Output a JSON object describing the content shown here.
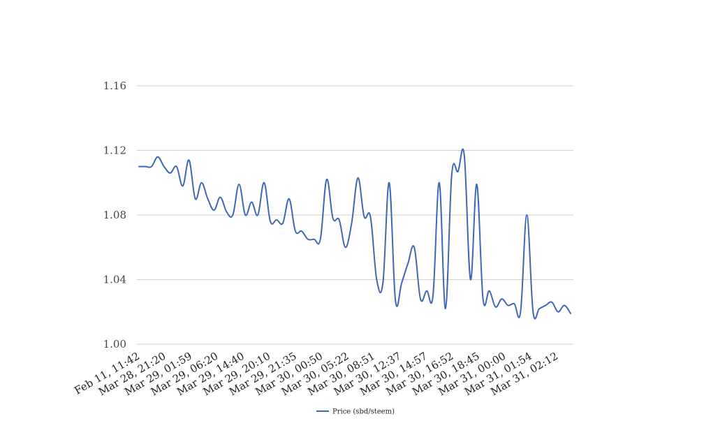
{
  "chart_data": {
    "type": "line",
    "title": "",
    "xlabel": "",
    "ylabel": "",
    "ylim": [
      1.0,
      1.16
    ],
    "y_ticks": [
      "1.00",
      "1.04",
      "1.08",
      "1.12",
      "1.16"
    ],
    "x_tick_labels": [
      "Feb 11, 11:42",
      "Mar 28, 21:20",
      "Mar 29, 01:59",
      "Mar 29, 06:20",
      "Mar 29, 14:40",
      "Mar 29, 20:10",
      "Mar 29, 21:35",
      "Mar 30, 00:50",
      "Mar 30, 05:22",
      "Mar 30, 08:51",
      "Mar 30, 12:37",
      "Mar 30, 14:57",
      "Mar 30, 16:52",
      "Mar 30, 18:45",
      "Mar 31, 00:00",
      "Mar 31, 01:54",
      "Mar 31, 02:12"
    ],
    "grid": true,
    "legend_position": "bottom",
    "series": [
      {
        "name": "Price (sbd/steem)",
        "color": "#3f66b7",
        "values": [
          1.11,
          1.11,
          1.11,
          1.116,
          1.11,
          1.106,
          1.11,
          1.098,
          1.114,
          1.09,
          1.1,
          1.09,
          1.083,
          1.091,
          1.082,
          1.08,
          1.099,
          1.08,
          1.088,
          1.08,
          1.1,
          1.076,
          1.077,
          1.075,
          1.09,
          1.07,
          1.07,
          1.065,
          1.065,
          1.065,
          1.102,
          1.078,
          1.077,
          1.06,
          1.075,
          1.103,
          1.079,
          1.079,
          1.04,
          1.038,
          1.1,
          1.027,
          1.038,
          1.05,
          1.06,
          1.028,
          1.033,
          1.03,
          1.1,
          1.022,
          1.105,
          1.107,
          1.117,
          1.04,
          1.099,
          1.028,
          1.033,
          1.023,
          1.028,
          1.024,
          1.025,
          1.02,
          1.08,
          1.02,
          1.022,
          1.024,
          1.026,
          1.02,
          1.024,
          1.019
        ]
      }
    ]
  }
}
